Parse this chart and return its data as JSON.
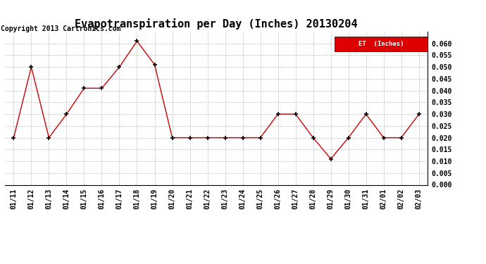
{
  "title": "Evapotranspiration per Day (Inches) 20130204",
  "copyright": "Copyright 2013 Cartronics.com",
  "legend_label": "ET  (Inches)",
  "legend_bg": "#dd0000",
  "legend_text_color": "#ffffff",
  "x_labels": [
    "01/11",
    "01/12",
    "01/13",
    "01/14",
    "01/15",
    "01/16",
    "01/17",
    "01/18",
    "01/19",
    "01/20",
    "01/21",
    "01/22",
    "01/23",
    "01/24",
    "01/25",
    "01/26",
    "01/27",
    "01/28",
    "01/29",
    "01/30",
    "01/31",
    "02/01",
    "02/02",
    "02/03"
  ],
  "y_values": [
    0.02,
    0.05,
    0.02,
    0.03,
    0.041,
    0.041,
    0.05,
    0.061,
    0.051,
    0.02,
    0.02,
    0.02,
    0.02,
    0.02,
    0.02,
    0.03,
    0.03,
    0.02,
    0.011,
    0.02,
    0.03,
    0.02,
    0.02,
    0.03
  ],
  "ylim": [
    0.0,
    0.065
  ],
  "yticks": [
    0.0,
    0.005,
    0.01,
    0.015,
    0.02,
    0.025,
    0.03,
    0.035,
    0.04,
    0.045,
    0.05,
    0.055,
    0.06
  ],
  "line_color": "#cc0000",
  "marker": "+",
  "marker_color": "#000000",
  "background_color": "#ffffff",
  "grid_color": "#bbbbbb",
  "title_fontsize": 11,
  "tick_fontsize": 7,
  "copyright_fontsize": 7
}
